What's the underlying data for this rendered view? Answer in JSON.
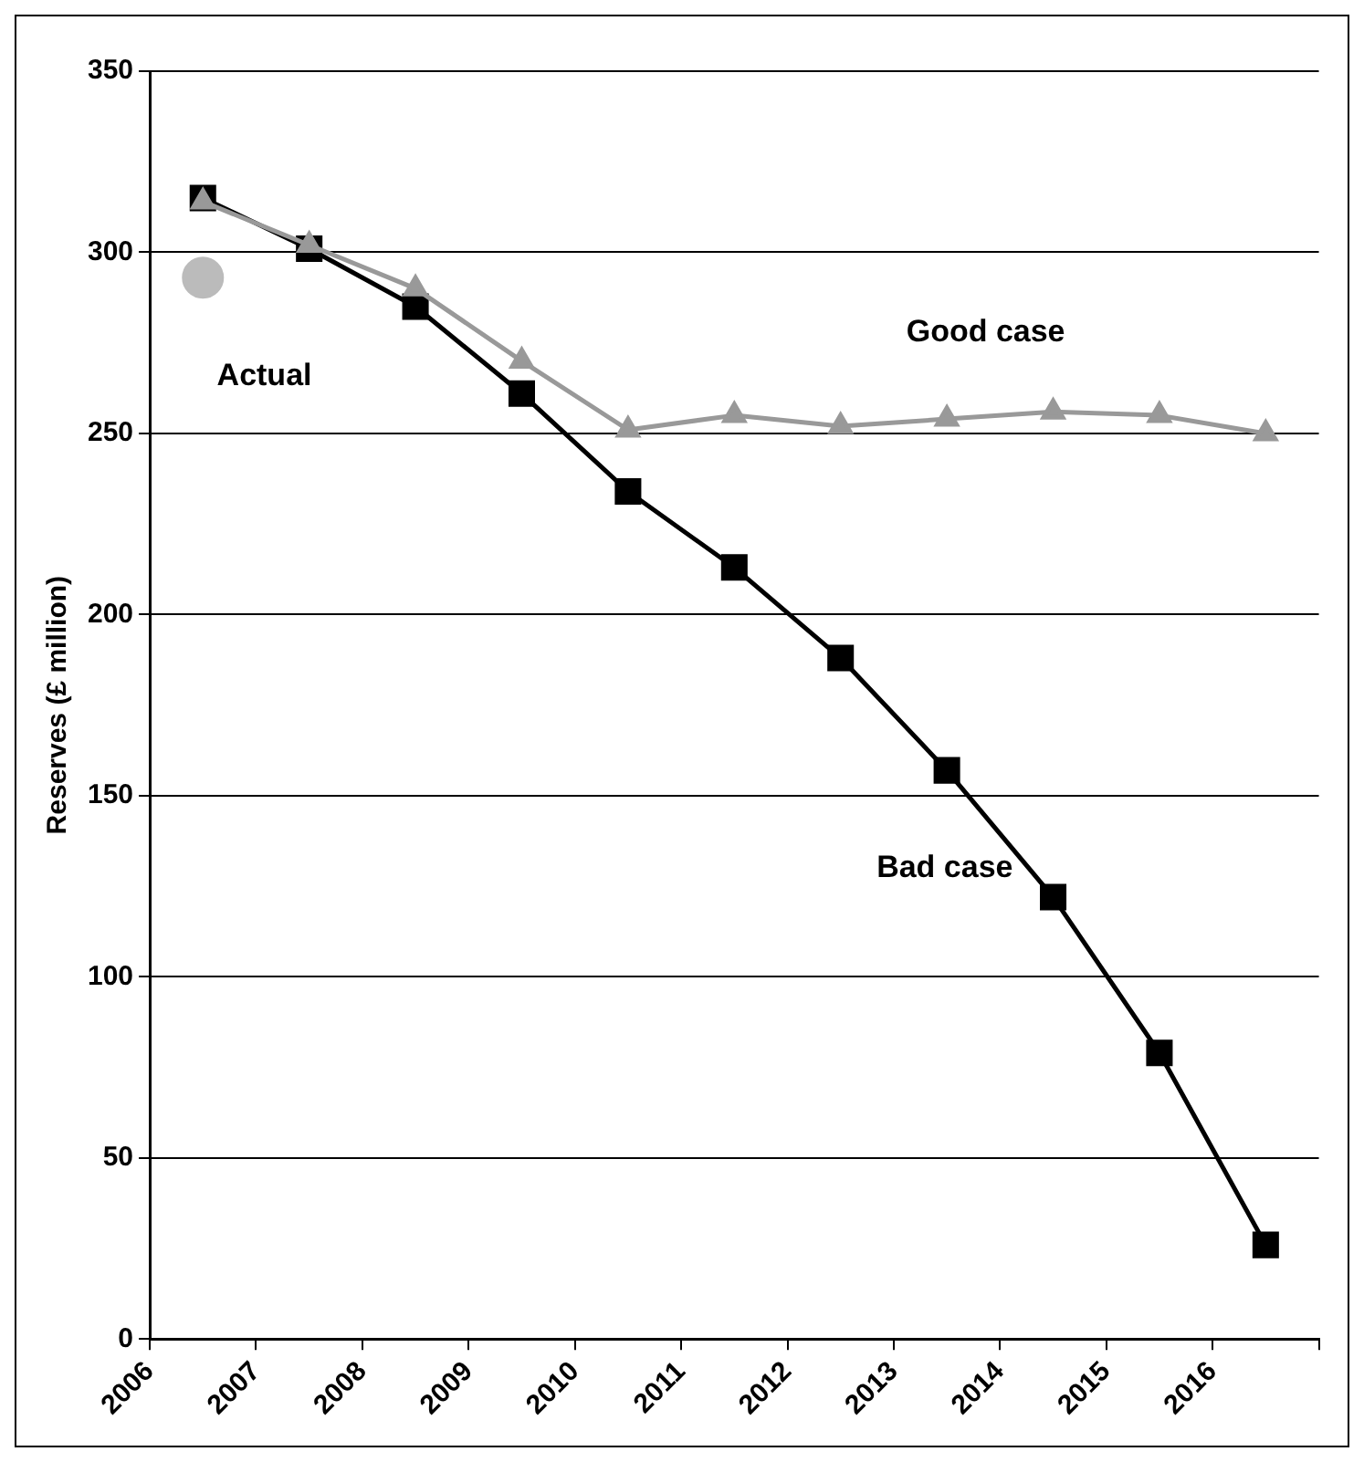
{
  "chart_data": {
    "type": "line",
    "ylabel": "Reserves (£ million)",
    "x": [
      2006.5,
      2007.5,
      2008.5,
      2009.5,
      2010.5,
      2011.5,
      2012.5,
      2013.5,
      2014.5,
      2015.5,
      2016.5
    ],
    "xlim": [
      2006,
      2017
    ],
    "xticks": [
      2006,
      2007,
      2008,
      2009,
      2010,
      2011,
      2012,
      2013,
      2014,
      2015,
      2016,
      {
        "value": 2017,
        "label": null
      }
    ],
    "ylim": [
      0,
      350
    ],
    "yticks": [
      0,
      50,
      100,
      150,
      200,
      250,
      300,
      350
    ],
    "grid": "y",
    "legend": false,
    "series": [
      {
        "name": "Bad case",
        "color": "#000000",
        "marker": "square",
        "values": [
          315,
          301,
          285,
          261,
          234,
          213,
          188,
          157,
          122,
          79,
          26
        ]
      },
      {
        "name": "Good case",
        "color": "#999999",
        "marker": "triangle",
        "values": [
          314,
          302,
          290,
          270,
          251,
          255,
          252,
          254,
          256,
          255,
          250
        ]
      },
      {
        "name": "Actual",
        "type": "scatter",
        "color": "#bbbbbb",
        "marker": "circle",
        "x": [
          2006.5
        ],
        "values": [
          293
        ]
      }
    ]
  }
}
